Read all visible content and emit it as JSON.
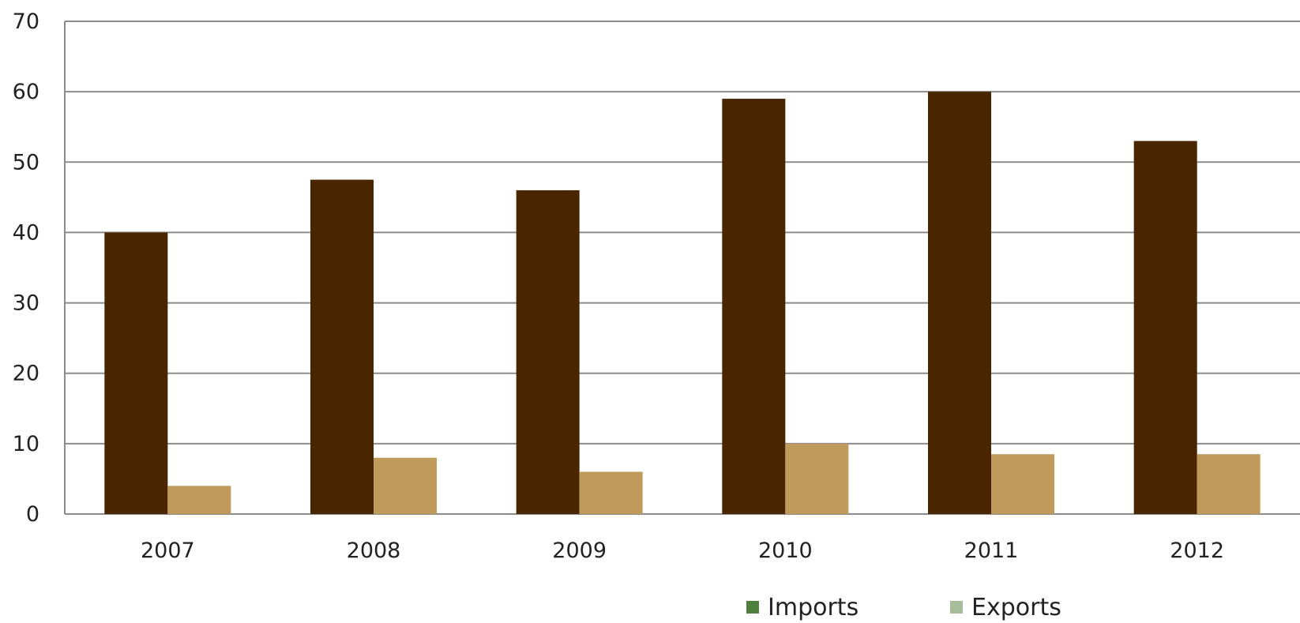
{
  "chart_data": {
    "type": "bar",
    "title": "",
    "xlabel": "",
    "ylabel": "",
    "categories": [
      "2007",
      "2008",
      "2009",
      "2010",
      "2011",
      "2012"
    ],
    "series": [
      {
        "name": "Imports",
        "values": [
          40,
          47.5,
          46,
          59,
          60,
          53
        ],
        "bar_color": "#4a2600",
        "legend_color": "#4f7f3f"
      },
      {
        "name": "Exports",
        "values": [
          4,
          8,
          6,
          10,
          8.5,
          8.5
        ],
        "bar_color": "#c09a5b",
        "legend_color": "#a6bc9b"
      }
    ],
    "ylim": [
      0,
      70
    ],
    "yticks": [
      0,
      10,
      20,
      30,
      40,
      50,
      60,
      70
    ],
    "grid": true,
    "legend_position": "bottom-right"
  }
}
